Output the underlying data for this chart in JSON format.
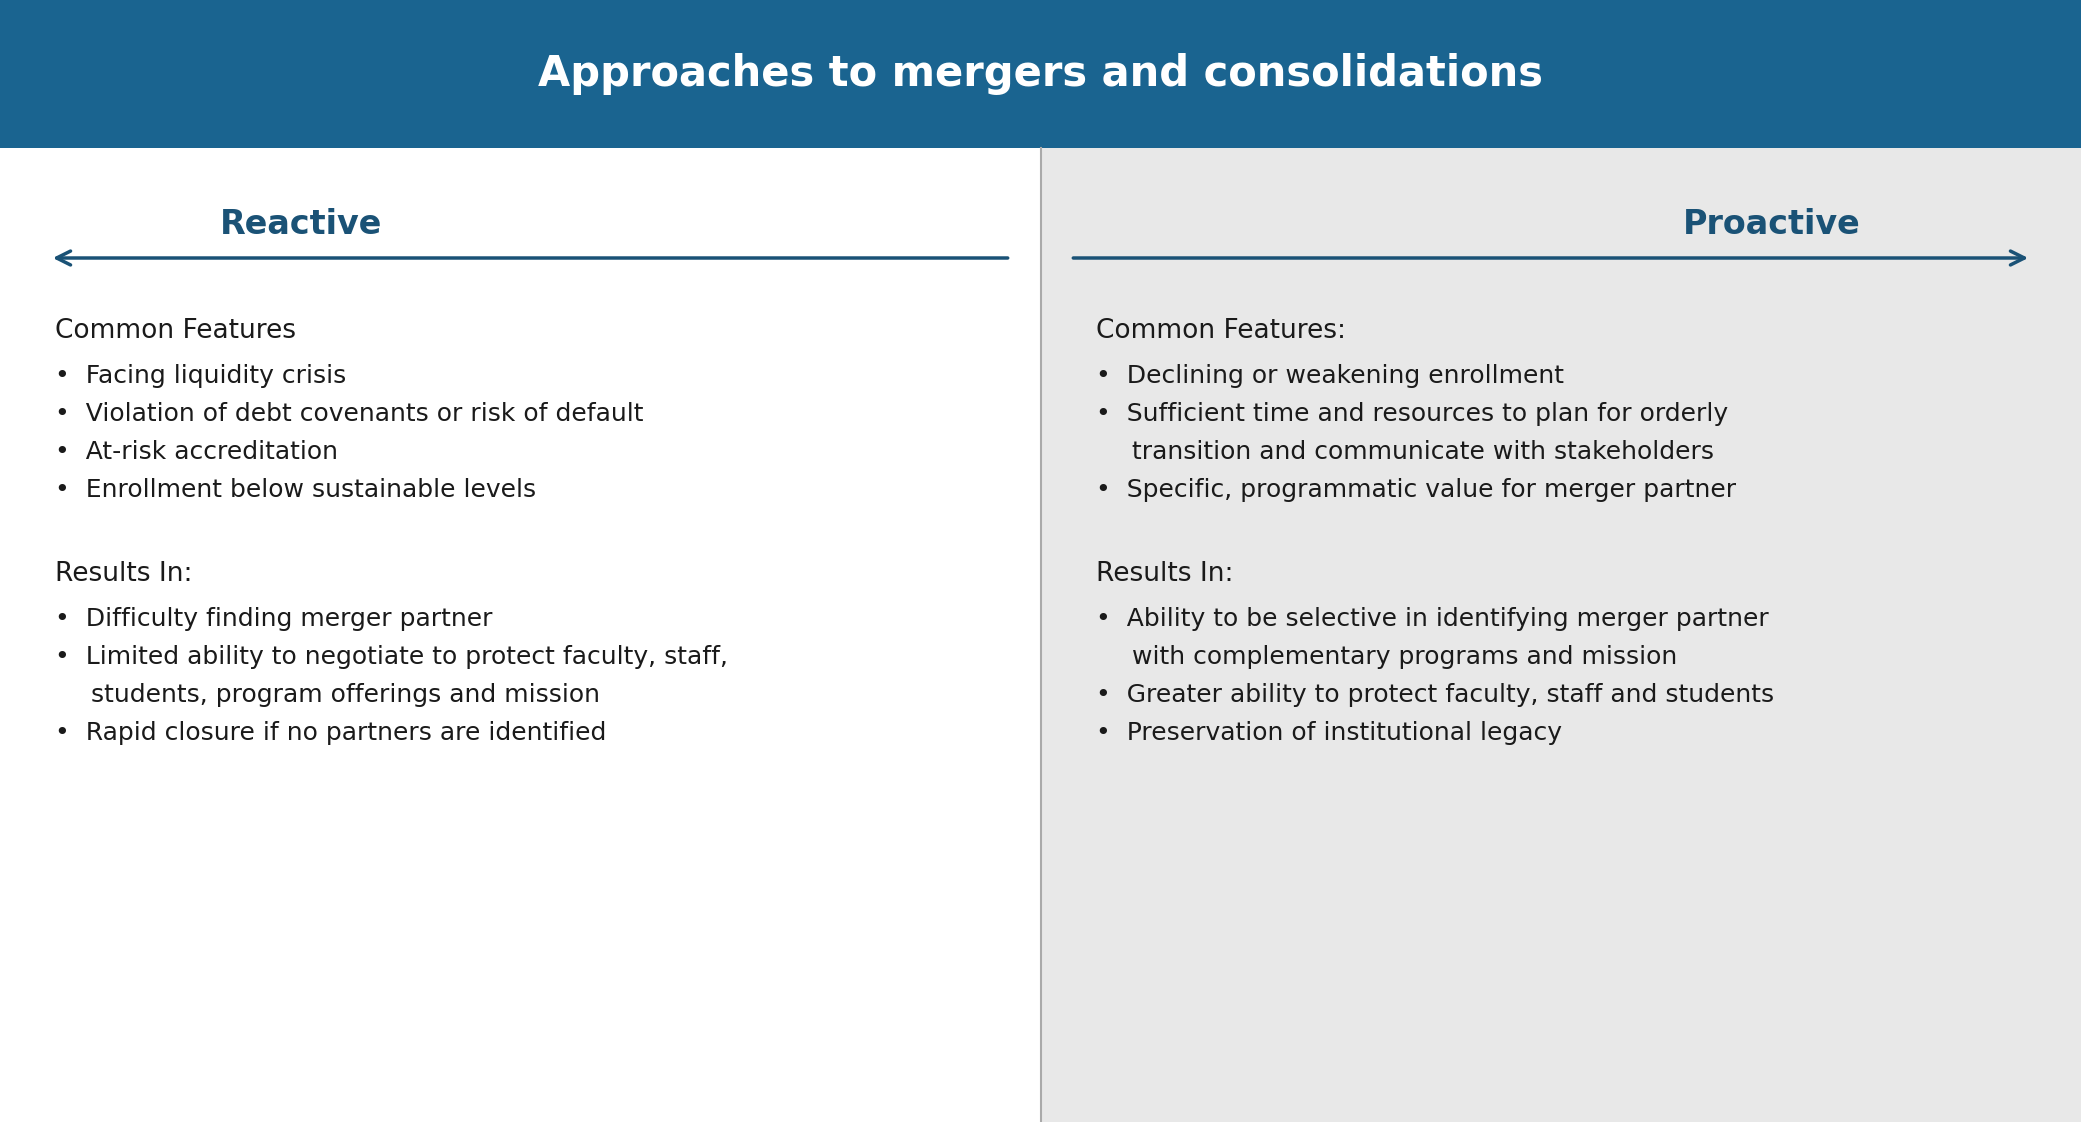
{
  "title": "Approaches to mergers and consolidations",
  "title_color": "#ffffff",
  "title_bg_color": "#1a6490",
  "left_label": "Reactive",
  "right_label": "Proactive",
  "label_color": "#1a5276",
  "arrow_color": "#1a5276",
  "left_bg": "#ffffff",
  "right_bg": "#e8e8e8",
  "divider_color": "#aaaaaa",
  "left_common_header": "Common Features",
  "left_common_bullets": [
    "Facing liquidity crisis",
    "Violation of debt covenants or risk of default",
    "At-risk accreditation",
    "Enrollment below sustainable levels"
  ],
  "left_results_header": "Results In:",
  "left_results_bullets": [
    "Difficulty finding merger partner",
    "Limited ability to negotiate to protect faculty, staff,\nstudents, program offerings and mission",
    "Rapid closure if no partners are identified"
  ],
  "right_common_header": "Common Features:",
  "right_common_bullets": [
    "Declining or weakening enrollment",
    "Sufficient time and resources to plan for orderly\ntransition and communicate with stakeholders",
    "Specific, programmatic value for merger partner"
  ],
  "right_results_header": "Results In:",
  "right_results_bullets": [
    "Ability to be selective in identifying merger partner\nwith complementary programs and mission",
    "Greater ability to protect faculty, staff and students",
    "Preservation of institutional legacy"
  ],
  "text_color": "#1a1a1a",
  "figsize": [
    20.81,
    11.22
  ],
  "dpi": 100
}
